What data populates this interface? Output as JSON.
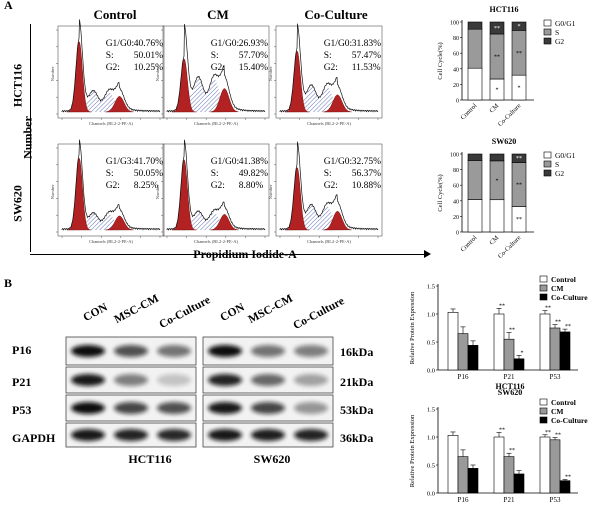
{
  "panel_a": {
    "label": "A",
    "col_headers": [
      "Control",
      "CM",
      "Co-Culture"
    ],
    "row_labels": [
      "HCT116",
      "SW620"
    ],
    "y_label": "Number",
    "x_label": "Propidium Iodide-A",
    "hist_axis_x": "Channels (BL2-2-PE-A)",
    "hist_axis_y": "Number",
    "stats_labels": [
      "G1/G0:",
      "S:",
      "G2:"
    ],
    "stats_alt_labels": [
      "G1/G3:",
      "S:",
      "G2:"
    ],
    "hct116": [
      {
        "g1": "40.76%",
        "s": "50.01%",
        "g2": "10.25%"
      },
      {
        "g1": "26.93%",
        "s": "57.70%",
        "g2": "15.40%"
      },
      {
        "g1": "31.83%",
        "s": "57.47%",
        "g2": "11.53%"
      }
    ],
    "sw620": [
      {
        "g1": "41.70%",
        "s": "50.05%",
        "g2": "8.25%"
      },
      {
        "g1": "41.38%",
        "s": "49.82%",
        "g2": "8.80%"
      },
      {
        "g1": "32.75%",
        "s": "56.37%",
        "g2": "10.88%"
      }
    ]
  },
  "panel_b": {
    "label": "B",
    "lane_labels": [
      "CON",
      "MSC-CM",
      "Co-Culture"
    ],
    "proteins": [
      "P16",
      "P21",
      "P53",
      "GAPDH"
    ],
    "kda": [
      "16kDa",
      "21kDa",
      "53kDa",
      "36kDa"
    ],
    "cell_lines": [
      "HCT116",
      "SW620"
    ]
  },
  "chart_data": [
    {
      "type": "bar",
      "title": "HCT116",
      "stacked": true,
      "ylabel": "Cell Cycle(%)",
      "ylim": [
        0,
        100
      ],
      "yticks": [
        "0",
        "20",
        "40",
        "60",
        "80",
        "100"
      ],
      "categories": [
        "Control",
        "CM",
        "Co-Culture"
      ],
      "series": [
        {
          "name": "G0/G1",
          "values": [
            40.76,
            26.93,
            31.83
          ]
        },
        {
          "name": "S",
          "values": [
            50.01,
            57.7,
            57.47
          ]
        },
        {
          "name": "G2",
          "values": [
            10.25,
            15.4,
            11.53
          ]
        }
      ],
      "annotations": [
        [
          "",
          "*",
          "*"
        ],
        [
          "",
          "**",
          "**"
        ],
        [
          "",
          "**",
          "*"
        ]
      ],
      "legend_position": "right"
    },
    {
      "type": "bar",
      "title": "SW620",
      "stacked": true,
      "ylabel": "Cell Cycle(%)",
      "ylim": [
        0,
        100
      ],
      "yticks": [
        "0",
        "20",
        "40",
        "60",
        "80",
        "100"
      ],
      "categories": [
        "Control",
        "CM",
        "Co-Culture"
      ],
      "series": [
        {
          "name": "G0/G1",
          "values": [
            41.7,
            41.38,
            32.75
          ]
        },
        {
          "name": "S",
          "values": [
            50.05,
            49.82,
            56.37
          ]
        },
        {
          "name": "G2",
          "values": [
            8.25,
            8.8,
            10.88
          ]
        }
      ],
      "annotations": [
        [
          "",
          "",
          "**"
        ],
        [
          "",
          "*",
          "**"
        ],
        [
          "",
          "",
          "**"
        ]
      ],
      "legend_position": "right"
    },
    {
      "type": "bar",
      "title": "HCT116",
      "ylabel": "Relative Protein Expression",
      "ylim": [
        0,
        1.5
      ],
      "yticks": [
        "0.0",
        "0.5",
        "1.0",
        "1.5"
      ],
      "categories": [
        "P16",
        "P21",
        "P53"
      ],
      "series": [
        {
          "name": "Control",
          "values": [
            1.03,
            1.0,
            1.0
          ],
          "err": [
            0.06,
            0.1,
            0.06
          ]
        },
        {
          "name": "CM",
          "values": [
            0.65,
            0.55,
            0.75
          ],
          "err": [
            0.12,
            0.12,
            0.06
          ]
        },
        {
          "name": "Co-Culture",
          "values": [
            0.44,
            0.2,
            0.68
          ],
          "err": [
            0.08,
            0.06,
            0.05
          ]
        }
      ],
      "annotations": [
        [
          "",
          "**",
          "**"
        ],
        [
          "",
          "**",
          "**"
        ],
        [
          "",
          "*",
          "**"
        ]
      ],
      "legend_position": "top-right"
    },
    {
      "type": "bar",
      "title": "SW620",
      "ylabel": "Relative Protein Expression",
      "ylim": [
        0,
        1.5
      ],
      "yticks": [
        "0.0",
        "0.5",
        "1.0",
        "1.5"
      ],
      "categories": [
        "P16",
        "P21",
        "P53"
      ],
      "series": [
        {
          "name": "Control",
          "values": [
            1.03,
            1.0,
            1.0
          ],
          "err": [
            0.06,
            0.08,
            0.04
          ]
        },
        {
          "name": "CM",
          "values": [
            0.65,
            0.65,
            0.95
          ],
          "err": [
            0.12,
            0.06,
            0.04
          ]
        },
        {
          "name": "Co-Culture",
          "values": [
            0.44,
            0.34,
            0.22
          ],
          "err": [
            0.06,
            0.06,
            0.02
          ]
        }
      ],
      "annotations": [
        [
          "",
          "**",
          "**"
        ],
        [
          "",
          "**",
          "**"
        ],
        [
          "",
          "",
          "**"
        ]
      ],
      "legend_position": "top-right"
    }
  ]
}
